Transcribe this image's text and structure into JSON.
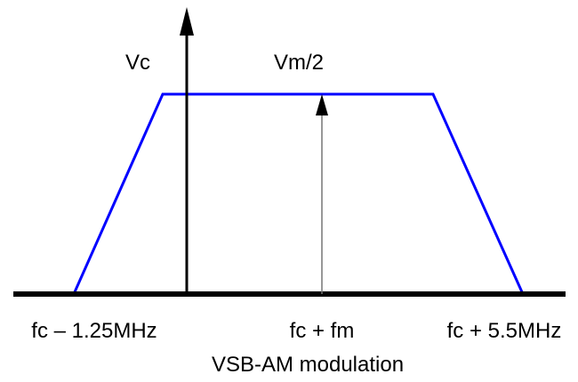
{
  "labels": {
    "carrier": "Vc",
    "sideband": "Vm/2"
  },
  "axis_labels": [
    "fc – 1.25MHz",
    "fc + fm",
    "fc + 5.5MHz"
  ],
  "caption": "VSB-AM modulation"
}
